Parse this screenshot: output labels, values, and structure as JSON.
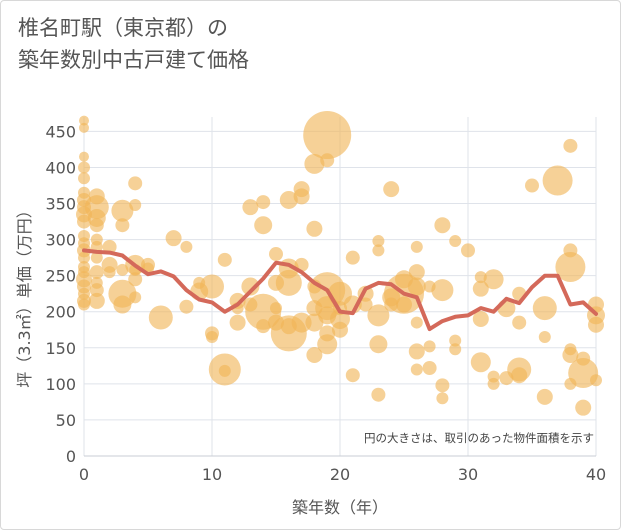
{
  "chart_data": {
    "type": "scatter",
    "title_lines": [
      "椎名町駅（東京都）の",
      "築年数別中古戸建て価格"
    ],
    "xlabel": "築年数（年）",
    "ylabel": "坪（3.3㎡）単価（万円）",
    "xlim": [
      0,
      40
    ],
    "ylim": [
      0,
      470
    ],
    "xticks": [
      "0",
      "10",
      "20",
      "30",
      "40"
    ],
    "yticks": [
      "0",
      "50",
      "100",
      "150",
      "200",
      "250",
      "300",
      "350",
      "400",
      "450"
    ],
    "xtick_values": [
      0,
      10,
      20,
      30,
      40
    ],
    "ytick_values": [
      0,
      50,
      100,
      150,
      200,
      250,
      300,
      350,
      400,
      450
    ],
    "note": "円の大きさは、取引のあった物件面積を示す",
    "colors": {
      "bubble": "#f0b557",
      "line": "#d4695a",
      "grid": "#dfe3ea",
      "text": "#555555"
    },
    "series": [
      {
        "name": "取引物件",
        "points": [
          [
            0,
            465,
            5
          ],
          [
            0,
            455,
            5
          ],
          [
            0,
            415,
            5
          ],
          [
            0,
            400,
            6
          ],
          [
            0,
            385,
            6
          ],
          [
            0,
            365,
            6
          ],
          [
            0,
            355,
            7
          ],
          [
            0,
            345,
            7
          ],
          [
            0,
            335,
            8
          ],
          [
            0,
            325,
            7
          ],
          [
            0,
            305,
            6
          ],
          [
            0,
            295,
            6
          ],
          [
            0,
            285,
            7
          ],
          [
            0,
            275,
            6
          ],
          [
            0,
            262,
            6
          ],
          [
            0,
            255,
            6
          ],
          [
            0,
            245,
            8
          ],
          [
            0,
            235,
            7
          ],
          [
            0,
            225,
            6
          ],
          [
            0,
            215,
            7
          ],
          [
            0,
            210,
            6
          ],
          [
            1,
            360,
            8
          ],
          [
            1,
            345,
            12
          ],
          [
            1,
            330,
            9
          ],
          [
            1,
            320,
            7
          ],
          [
            1,
            300,
            6
          ],
          [
            1,
            290,
            6
          ],
          [
            1,
            275,
            6
          ],
          [
            1,
            255,
            7
          ],
          [
            1,
            240,
            6
          ],
          [
            1,
            230,
            7
          ],
          [
            1,
            215,
            8
          ],
          [
            2,
            290,
            7
          ],
          [
            2,
            265,
            8
          ],
          [
            2,
            255,
            6
          ],
          [
            3,
            340,
            11
          ],
          [
            3,
            320,
            7
          ],
          [
            3,
            258,
            6
          ],
          [
            3,
            225,
            14
          ],
          [
            3,
            210,
            9
          ],
          [
            4,
            378,
            7
          ],
          [
            4,
            348,
            6
          ],
          [
            4,
            265,
            10
          ],
          [
            4,
            258,
            6
          ],
          [
            4,
            245,
            7
          ],
          [
            4,
            220,
            6
          ],
          [
            5,
            265,
            7
          ],
          [
            5,
            260,
            6
          ],
          [
            6,
            192,
            12
          ],
          [
            7,
            302,
            8
          ],
          [
            8,
            290,
            6
          ],
          [
            8,
            207,
            7
          ],
          [
            9,
            240,
            6
          ],
          [
            9,
            228,
            9
          ],
          [
            10,
            235,
            12
          ],
          [
            10,
            170,
            7
          ],
          [
            10,
            165,
            6
          ],
          [
            11,
            272,
            7
          ],
          [
            11,
            120,
            16
          ],
          [
            11,
            118,
            6
          ],
          [
            12,
            215,
            8
          ],
          [
            12,
            205,
            6
          ],
          [
            12,
            185,
            8
          ],
          [
            13,
            345,
            8
          ],
          [
            13,
            235,
            9
          ],
          [
            13,
            210,
            7
          ],
          [
            14,
            352,
            7
          ],
          [
            14,
            320,
            9
          ],
          [
            14,
            200,
            18
          ],
          [
            14,
            180,
            7
          ],
          [
            15,
            280,
            7
          ],
          [
            15,
            240,
            8
          ],
          [
            15,
            205,
            6
          ],
          [
            15,
            185,
            8
          ],
          [
            16,
            355,
            9
          ],
          [
            16,
            260,
            10
          ],
          [
            16,
            240,
            13
          ],
          [
            16,
            170,
            18
          ],
          [
            16,
            180,
            8
          ],
          [
            17,
            370,
            8
          ],
          [
            17,
            360,
            8
          ],
          [
            17,
            265,
            7
          ],
          [
            17,
            185,
            10
          ],
          [
            18,
            405,
            10
          ],
          [
            18,
            315,
            8
          ],
          [
            18,
            235,
            7
          ],
          [
            18,
            205,
            8
          ],
          [
            18,
            185,
            9
          ],
          [
            18,
            140,
            8
          ],
          [
            19,
            445,
            24
          ],
          [
            19,
            410,
            7
          ],
          [
            19,
            230,
            18
          ],
          [
            19,
            205,
            12
          ],
          [
            19,
            195,
            9
          ],
          [
            19,
            170,
            8
          ],
          [
            19,
            155,
            10
          ],
          [
            20,
            225,
            12
          ],
          [
            20,
            205,
            7
          ],
          [
            20,
            190,
            10
          ],
          [
            20,
            175,
            8
          ],
          [
            21,
            275,
            7
          ],
          [
            21,
            210,
            9
          ],
          [
            21,
            112,
            7
          ],
          [
            22,
            225,
            8
          ],
          [
            22,
            210,
            7
          ],
          [
            23,
            298,
            6
          ],
          [
            23,
            285,
            6
          ],
          [
            23,
            195,
            11
          ],
          [
            23,
            155,
            9
          ],
          [
            23,
            85,
            7
          ],
          [
            24,
            370,
            8
          ],
          [
            24,
            220,
            9
          ],
          [
            24,
            210,
            7
          ],
          [
            25,
            245,
            9
          ],
          [
            25,
            225,
            20
          ],
          [
            25,
            210,
            8
          ],
          [
            26,
            290,
            6
          ],
          [
            26,
            255,
            8
          ],
          [
            26,
            235,
            9
          ],
          [
            26,
            185,
            6
          ],
          [
            26,
            145,
            8
          ],
          [
            26,
            120,
            6
          ],
          [
            27,
            235,
            6
          ],
          [
            27,
            152,
            6
          ],
          [
            27,
            122,
            7
          ],
          [
            28,
            320,
            8
          ],
          [
            28,
            230,
            11
          ],
          [
            28,
            98,
            7
          ],
          [
            28,
            80,
            6
          ],
          [
            29,
            298,
            6
          ],
          [
            29,
            160,
            6
          ],
          [
            29,
            148,
            6
          ],
          [
            30,
            285,
            7
          ],
          [
            31,
            248,
            6
          ],
          [
            31,
            232,
            8
          ],
          [
            31,
            190,
            8
          ],
          [
            31,
            130,
            10
          ],
          [
            32,
            245,
            10
          ],
          [
            32,
            110,
            6
          ],
          [
            32,
            100,
            6
          ],
          [
            33,
            205,
            9
          ],
          [
            33,
            108,
            7
          ],
          [
            34,
            225,
            7
          ],
          [
            34,
            185,
            7
          ],
          [
            34,
            120,
            12
          ],
          [
            34,
            112,
            8
          ],
          [
            35,
            375,
            7
          ],
          [
            36,
            205,
            12
          ],
          [
            36,
            165,
            6
          ],
          [
            36,
            82,
            8
          ],
          [
            37,
            382,
            15
          ],
          [
            38,
            430,
            7
          ],
          [
            38,
            285,
            7
          ],
          [
            38,
            262,
            15
          ],
          [
            38,
            148,
            6
          ],
          [
            38,
            140,
            8
          ],
          [
            38,
            100,
            6
          ],
          [
            39,
            135,
            7
          ],
          [
            39,
            115,
            15
          ],
          [
            39,
            67,
            8
          ],
          [
            40,
            210,
            8
          ],
          [
            40,
            195,
            9
          ],
          [
            40,
            182,
            8
          ],
          [
            40,
            105,
            6
          ]
        ]
      },
      {
        "name": "平均",
        "x": [
          0,
          1,
          2,
          3,
          4,
          5,
          6,
          7,
          8,
          9,
          10,
          11,
          12,
          13,
          14,
          15,
          16,
          17,
          18,
          19,
          20,
          21,
          22,
          23,
          24,
          25,
          26,
          27,
          28,
          29,
          30,
          31,
          32,
          33,
          34,
          35,
          36,
          37,
          38,
          39,
          40
        ],
        "values": [
          285,
          283,
          282,
          278,
          264,
          252,
          256,
          249,
          230,
          217,
          213,
          200,
          210,
          228,
          246,
          268,
          265,
          255,
          240,
          230,
          200,
          198,
          232,
          240,
          238,
          225,
          220,
          176,
          187,
          193,
          195,
          205,
          200,
          218,
          212,
          234,
          250,
          250,
          210,
          213,
          197
        ]
      }
    ]
  }
}
